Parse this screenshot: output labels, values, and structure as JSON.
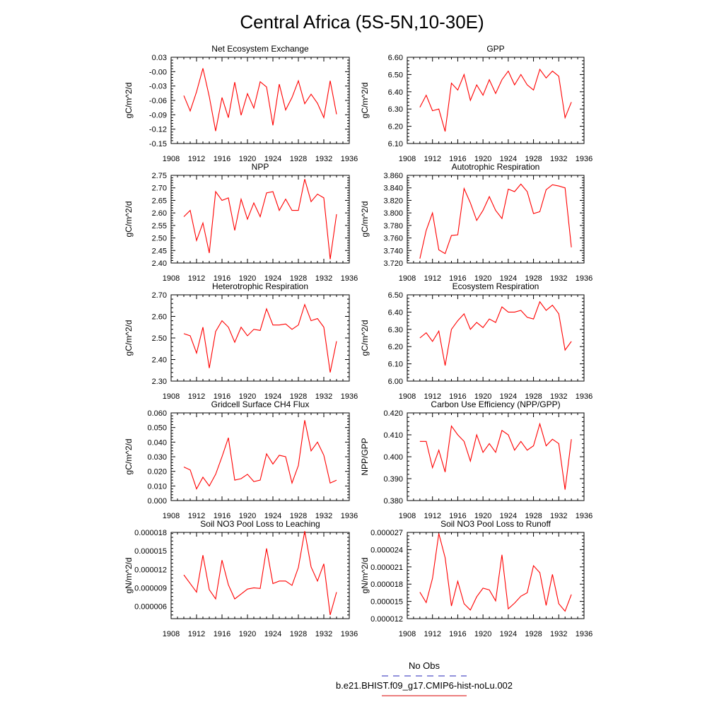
{
  "page": {
    "title": "Central Africa (5S-5N,10-30E)"
  },
  "legend": {
    "obs_label": "No Obs",
    "obs_color": "#5050c8",
    "model_label": "b.e21.BHIST.f09_g17.CMIP6-hist-noLu.002",
    "model_color": "#e03030"
  },
  "chart_data": [
    {
      "type": "line",
      "title": "Net Ecosystem Exchange",
      "xlabel": "",
      "ylabel": "gC/m^2/d",
      "xlim": [
        1908,
        1936
      ],
      "xticks": [
        1908,
        1912,
        1916,
        1920,
        1924,
        1928,
        1932,
        1936
      ],
      "ylim": [
        -0.15,
        0.03
      ],
      "yticks": [
        -0.15,
        -0.12,
        -0.09,
        -0.06,
        -0.03,
        0.0,
        0.03
      ],
      "ytick_labels": [
        "-0.15",
        "-0.12",
        "-0.09",
        "-0.06",
        "-0.03",
        "-0.00",
        "0.03"
      ],
      "grid": false,
      "series": [
        {
          "color": "#ff0000",
          "x": [
            1910,
            1911,
            1912,
            1913,
            1914,
            1915,
            1916,
            1917,
            1918,
            1919,
            1920,
            1921,
            1922,
            1923,
            1924,
            1925,
            1926,
            1927,
            1928,
            1929,
            1930,
            1931,
            1932,
            1933,
            1934
          ],
          "y": [
            -0.05,
            -0.082,
            -0.042,
            0.007,
            -0.052,
            -0.124,
            -0.054,
            -0.096,
            -0.022,
            -0.091,
            -0.046,
            -0.076,
            -0.021,
            -0.032,
            -0.112,
            -0.026,
            -0.08,
            -0.054,
            -0.019,
            -0.067,
            -0.047,
            -0.066,
            -0.096,
            -0.019,
            -0.089
          ]
        }
      ]
    },
    {
      "type": "line",
      "title": "GPP",
      "xlabel": "",
      "ylabel": "gC/m^2/d",
      "xlim": [
        1908,
        1936
      ],
      "xticks": [
        1908,
        1912,
        1916,
        1920,
        1924,
        1928,
        1932,
        1936
      ],
      "ylim": [
        6.1,
        6.6
      ],
      "yticks": [
        6.1,
        6.2,
        6.3,
        6.4,
        6.5,
        6.6
      ],
      "ytick_labels": [
        "6.10",
        "6.20",
        "6.30",
        "6.40",
        "6.50",
        "6.60"
      ],
      "grid": false,
      "series": [
        {
          "color": "#ff0000",
          "x": [
            1910,
            1911,
            1912,
            1913,
            1914,
            1915,
            1916,
            1917,
            1918,
            1919,
            1920,
            1921,
            1922,
            1923,
            1924,
            1925,
            1926,
            1927,
            1928,
            1929,
            1930,
            1931,
            1932,
            1933,
            1934
          ],
          "y": [
            6.31,
            6.38,
            6.29,
            6.3,
            6.17,
            6.45,
            6.41,
            6.5,
            6.35,
            6.44,
            6.38,
            6.47,
            6.39,
            6.47,
            6.52,
            6.44,
            6.5,
            6.44,
            6.41,
            6.53,
            6.48,
            6.52,
            6.49,
            6.25,
            6.34
          ]
        }
      ]
    },
    {
      "type": "line",
      "title": "NPP",
      "xlabel": "",
      "ylabel": "gC/m^2/d",
      "xlim": [
        1908,
        1936
      ],
      "xticks": [
        1908,
        1912,
        1916,
        1920,
        1924,
        1928,
        1932,
        1936
      ],
      "ylim": [
        2.4,
        2.75
      ],
      "yticks": [
        2.4,
        2.45,
        2.5,
        2.55,
        2.6,
        2.65,
        2.7,
        2.75
      ],
      "ytick_labels": [
        "2.40",
        "2.45",
        "2.50",
        "2.55",
        "2.60",
        "2.65",
        "2.70",
        "2.75"
      ],
      "grid": false,
      "series": [
        {
          "color": "#ff0000",
          "x": [
            1910,
            1911,
            1912,
            1913,
            1914,
            1915,
            1916,
            1917,
            1918,
            1919,
            1920,
            1921,
            1922,
            1923,
            1924,
            1925,
            1926,
            1927,
            1928,
            1929,
            1930,
            1931,
            1932,
            1933,
            1934
          ],
          "y": [
            2.585,
            2.61,
            2.49,
            2.56,
            2.44,
            2.685,
            2.65,
            2.66,
            2.53,
            2.655,
            2.575,
            2.64,
            2.585,
            2.68,
            2.685,
            2.61,
            2.655,
            2.61,
            2.61,
            2.735,
            2.645,
            2.675,
            2.66,
            2.415,
            2.595
          ]
        }
      ]
    },
    {
      "type": "line",
      "title": "Autotrophic Respiration",
      "xlabel": "",
      "ylabel": "gC/m^2/d",
      "xlim": [
        1908,
        1936
      ],
      "xticks": [
        1908,
        1912,
        1916,
        1920,
        1924,
        1928,
        1932,
        1936
      ],
      "ylim": [
        3.72,
        3.86
      ],
      "yticks": [
        3.72,
        3.74,
        3.76,
        3.78,
        3.8,
        3.82,
        3.84,
        3.86
      ],
      "ytick_labels": [
        "3.720",
        "3.740",
        "3.760",
        "3.780",
        "3.800",
        "3.820",
        "3.840",
        "3.860"
      ],
      "grid": false,
      "series": [
        {
          "color": "#ff0000",
          "x": [
            1910,
            1911,
            1912,
            1913,
            1914,
            1915,
            1916,
            1917,
            1918,
            1919,
            1920,
            1921,
            1922,
            1923,
            1924,
            1925,
            1926,
            1927,
            1928,
            1929,
            1930,
            1931,
            1932,
            1933,
            1934
          ],
          "y": [
            3.727,
            3.772,
            3.8,
            3.741,
            3.735,
            3.764,
            3.765,
            3.839,
            3.816,
            3.788,
            3.804,
            3.826,
            3.804,
            3.791,
            3.838,
            3.834,
            3.846,
            3.834,
            3.799,
            3.802,
            3.837,
            3.845,
            3.843,
            3.84,
            3.745
          ]
        }
      ]
    },
    {
      "type": "line",
      "title": "Heterotrophic Respiration",
      "xlabel": "",
      "ylabel": "gC/m^2/d",
      "xlim": [
        1908,
        1936
      ],
      "xticks": [
        1908,
        1912,
        1916,
        1920,
        1924,
        1928,
        1932,
        1936
      ],
      "ylim": [
        2.3,
        2.7
      ],
      "yticks": [
        2.3,
        2.4,
        2.5,
        2.6,
        2.7
      ],
      "ytick_labels": [
        "2.30",
        "2.40",
        "2.50",
        "2.60",
        "2.70"
      ],
      "grid": false,
      "series": [
        {
          "color": "#ff0000",
          "x": [
            1910,
            1911,
            1912,
            1913,
            1914,
            1915,
            1916,
            1917,
            1918,
            1919,
            1920,
            1921,
            1922,
            1923,
            1924,
            1925,
            1926,
            1927,
            1928,
            1929,
            1930,
            1931,
            1932,
            1933,
            1934
          ],
          "y": [
            2.52,
            2.51,
            2.43,
            2.55,
            2.36,
            2.53,
            2.58,
            2.55,
            2.48,
            2.55,
            2.51,
            2.54,
            2.535,
            2.635,
            2.56,
            2.56,
            2.565,
            2.54,
            2.56,
            2.655,
            2.58,
            2.59,
            2.55,
            2.34,
            2.485
          ]
        }
      ]
    },
    {
      "type": "line",
      "title": "Ecosystem Respiration",
      "xlabel": "",
      "ylabel": "gC/m^2/d",
      "xlim": [
        1908,
        1936
      ],
      "xticks": [
        1908,
        1912,
        1916,
        1920,
        1924,
        1928,
        1932,
        1936
      ],
      "ylim": [
        6.0,
        6.5
      ],
      "yticks": [
        6.0,
        6.1,
        6.2,
        6.3,
        6.4,
        6.5
      ],
      "ytick_labels": [
        "6.00",
        "6.10",
        "6.20",
        "6.30",
        "6.40",
        "6.50"
      ],
      "grid": false,
      "series": [
        {
          "color": "#ff0000",
          "x": [
            1910,
            1911,
            1912,
            1913,
            1914,
            1915,
            1916,
            1917,
            1918,
            1919,
            1920,
            1921,
            1922,
            1923,
            1924,
            1925,
            1926,
            1927,
            1928,
            1929,
            1930,
            1931,
            1932,
            1933,
            1934
          ],
          "y": [
            6.25,
            6.28,
            6.23,
            6.29,
            6.09,
            6.3,
            6.35,
            6.39,
            6.3,
            6.34,
            6.31,
            6.36,
            6.34,
            6.43,
            6.4,
            6.4,
            6.41,
            6.37,
            6.36,
            6.46,
            6.41,
            6.44,
            6.39,
            6.18,
            6.23
          ]
        }
      ]
    },
    {
      "type": "line",
      "title": "Gridcell Surface CH4 Flux",
      "xlabel": "",
      "ylabel": "gC/m^2/d",
      "xlim": [
        1908,
        1936
      ],
      "xticks": [
        1908,
        1912,
        1916,
        1920,
        1924,
        1928,
        1932,
        1936
      ],
      "ylim": [
        0.0,
        0.06
      ],
      "yticks": [
        0.0,
        0.01,
        0.02,
        0.03,
        0.04,
        0.05,
        0.06
      ],
      "ytick_labels": [
        "0.000",
        "0.010",
        "0.020",
        "0.030",
        "0.040",
        "0.050",
        "0.060"
      ],
      "grid": false,
      "series": [
        {
          "color": "#ff0000",
          "x": [
            1910,
            1911,
            1912,
            1913,
            1914,
            1915,
            1916,
            1917,
            1918,
            1919,
            1920,
            1921,
            1922,
            1923,
            1924,
            1925,
            1926,
            1927,
            1928,
            1929,
            1930,
            1931,
            1932,
            1933,
            1934
          ],
          "y": [
            0.023,
            0.021,
            0.008,
            0.016,
            0.01,
            0.018,
            0.03,
            0.043,
            0.014,
            0.015,
            0.018,
            0.013,
            0.014,
            0.032,
            0.025,
            0.031,
            0.03,
            0.012,
            0.024,
            0.055,
            0.034,
            0.04,
            0.031,
            0.012,
            0.014
          ]
        }
      ]
    },
    {
      "type": "line",
      "title": "Carbon Use Efficiency (NPP/GPP)",
      "xlabel": "",
      "ylabel": "NPP/GPP",
      "xlim": [
        1908,
        1936
      ],
      "xticks": [
        1908,
        1912,
        1916,
        1920,
        1924,
        1928,
        1932,
        1936
      ],
      "ylim": [
        0.38,
        0.42
      ],
      "yticks": [
        0.38,
        0.39,
        0.4,
        0.41,
        0.42
      ],
      "ytick_labels": [
        "0.380",
        "0.390",
        "0.400",
        "0.410",
        "0.420"
      ],
      "grid": false,
      "series": [
        {
          "color": "#ff0000",
          "x": [
            1910,
            1911,
            1912,
            1913,
            1914,
            1915,
            1916,
            1917,
            1918,
            1919,
            1920,
            1921,
            1922,
            1923,
            1924,
            1925,
            1926,
            1927,
            1928,
            1929,
            1930,
            1931,
            1932,
            1933,
            1934
          ],
          "y": [
            0.407,
            0.407,
            0.395,
            0.403,
            0.393,
            0.414,
            0.41,
            0.407,
            0.398,
            0.41,
            0.402,
            0.406,
            0.402,
            0.412,
            0.41,
            0.403,
            0.407,
            0.403,
            0.405,
            0.415,
            0.405,
            0.408,
            0.406,
            0.385,
            0.408
          ]
        }
      ]
    },
    {
      "type": "line",
      "title": "Soil NO3 Pool Loss to Leaching",
      "xlabel": "",
      "ylabel": "gN/m^2/d",
      "xlim": [
        1908,
        1936
      ],
      "xticks": [
        1908,
        1912,
        1916,
        1920,
        1924,
        1928,
        1932,
        1936
      ],
      "ylim": [
        4e-06,
        1.8e-05
      ],
      "yticks": [
        6e-06,
        9e-06,
        1.2e-05,
        1.5e-05,
        1.8e-05
      ],
      "ytick_labels": [
        "0.000006",
        "0.000009",
        "0.000012",
        "0.000015",
        "0.000018"
      ],
      "grid": false,
      "series": [
        {
          "color": "#ff0000",
          "x": [
            1910,
            1911,
            1912,
            1913,
            1914,
            1915,
            1916,
            1917,
            1918,
            1919,
            1920,
            1921,
            1922,
            1923,
            1924,
            1925,
            1926,
            1927,
            1928,
            1929,
            1930,
            1931,
            1932,
            1933,
            1934
          ],
          "y": [
            1.11e-05,
            9.7e-06,
            8.3e-06,
            1.43e-05,
            8.7e-06,
            7.2e-06,
            1.35e-05,
            9.5e-06,
            7.2e-06,
            8e-06,
            8.8e-06,
            9e-06,
            8.9e-06,
            1.54e-05,
            9.7e-06,
            1.01e-05,
            1.01e-05,
            9.4e-06,
            1.23e-05,
            1.82e-05,
            1.24e-05,
            1.01e-05,
            1.29e-05,
            4.6e-06,
            8.3e-06
          ]
        }
      ]
    },
    {
      "type": "line",
      "title": "Soil NO3 Pool Loss to Runoff",
      "xlabel": "",
      "ylabel": "gN/m^2/d",
      "xlim": [
        1908,
        1936
      ],
      "xticks": [
        1908,
        1912,
        1916,
        1920,
        1924,
        1928,
        1932,
        1936
      ],
      "ylim": [
        1.2e-05,
        2.7e-05
      ],
      "yticks": [
        1.2e-05,
        1.5e-05,
        1.8e-05,
        2.1e-05,
        2.4e-05,
        2.7e-05
      ],
      "ytick_labels": [
        "0.000012",
        "0.000015",
        "0.000018",
        "0.000021",
        "0.000024",
        "0.000027"
      ],
      "grid": false,
      "series": [
        {
          "color": "#ff0000",
          "x": [
            1910,
            1911,
            1912,
            1913,
            1914,
            1915,
            1916,
            1917,
            1918,
            1919,
            1920,
            1921,
            1922,
            1923,
            1924,
            1925,
            1926,
            1927,
            1928,
            1929,
            1930,
            1931,
            1932,
            1933,
            1934
          ],
          "y": [
            1.66e-05,
            1.48e-05,
            1.9e-05,
            2.68e-05,
            2.26e-05,
            1.42e-05,
            1.85e-05,
            1.46e-05,
            1.35e-05,
            1.58e-05,
            1.73e-05,
            1.7e-05,
            1.51e-05,
            2.31e-05,
            1.37e-05,
            1.47e-05,
            1.59e-05,
            1.65e-05,
            2.12e-05,
            2e-05,
            1.43e-05,
            1.97e-05,
            1.46e-05,
            1.33e-05,
            1.62e-05
          ]
        }
      ]
    }
  ]
}
